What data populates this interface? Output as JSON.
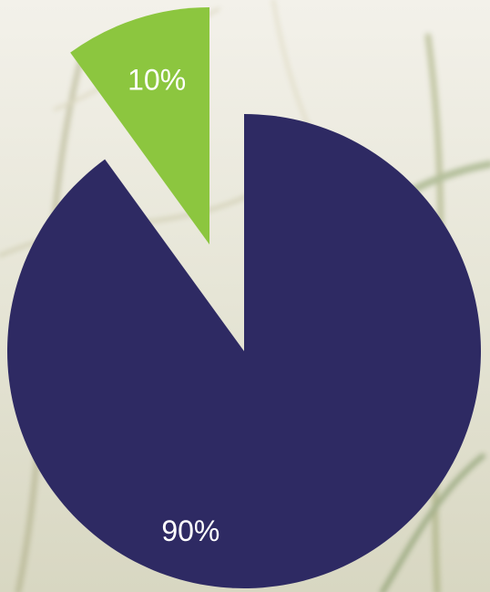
{
  "chart_data": {
    "type": "pie",
    "values": [
      90,
      10
    ],
    "value_labels": [
      "90%",
      "10%"
    ],
    "colors": [
      "#2e2a63",
      "#8cc63f"
    ],
    "exploded": [
      false,
      true
    ]
  }
}
